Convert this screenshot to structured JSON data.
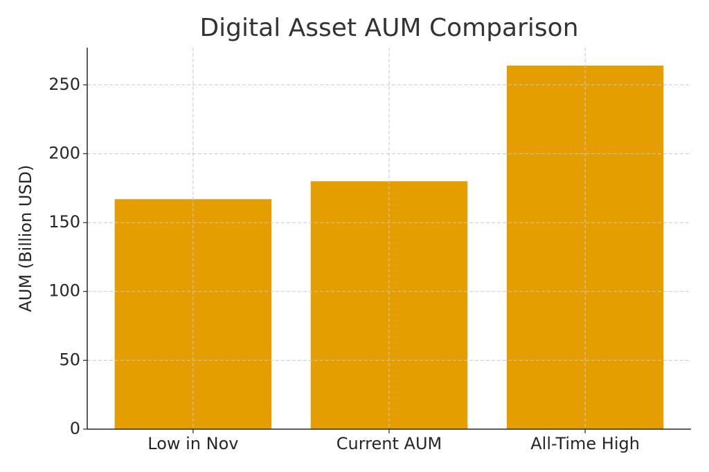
{
  "chart_data": {
    "type": "bar",
    "title": "Digital Asset AUM Comparison",
    "y_label": "AUM (Billion USD)",
    "categories": [
      "Low in Nov",
      "Current AUM",
      "All-Time High"
    ],
    "values": [
      167,
      180,
      264
    ],
    "color": "#e49e00",
    "ylim": [
      0,
      277
    ],
    "yticks": [
      0,
      50,
      100,
      150,
      200,
      250
    ],
    "grid": true
  }
}
